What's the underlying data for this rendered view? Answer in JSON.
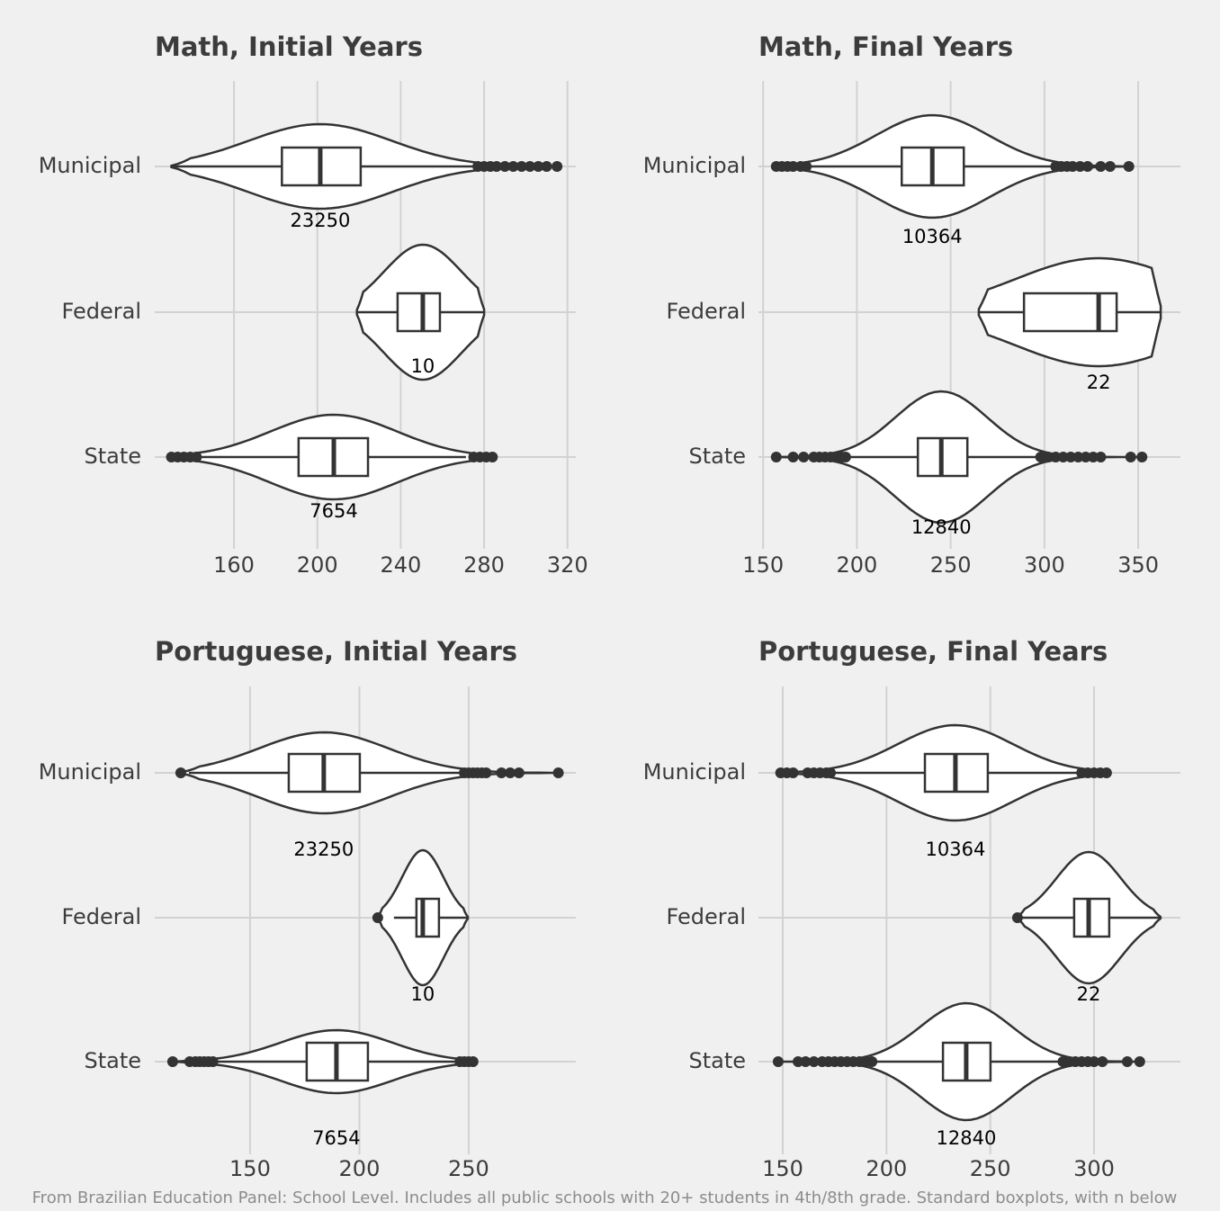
{
  "caption": "From Brazilian Education Panel: School Level. Includes all public schools with 20+ students in 4th/8th grade. Standard boxplots, with n below",
  "chart_data": [
    {
      "type": "boxplot",
      "title": "Math, Initial Years",
      "categories": [
        "Municipal",
        "Federal",
        "State"
      ],
      "xlim": [
        122,
        324
      ],
      "xticks": [
        160,
        200,
        240,
        280,
        320
      ],
      "grid": true,
      "boxes": [
        {
          "whisker_low": 130,
          "q1": 183,
          "median": 201.4,
          "q3": 220.8,
          "whisker_high": 276.4,
          "outliers": [
            277,
            280,
            283,
            286,
            290,
            294,
            298,
            302,
            306,
            310,
            315
          ],
          "n": 23250
        },
        {
          "whisker_low": 219,
          "q1": 238.5,
          "median": 250.6,
          "q3": 258.8,
          "whisker_high": 280,
          "outliers": [],
          "n": 10
        },
        {
          "whisker_low": 143,
          "q1": 191,
          "median": 207.9,
          "q3": 224.3,
          "whisker_high": 271.3,
          "outliers": [
            130,
            133,
            136,
            139,
            142,
            275,
            278,
            281,
            284
          ],
          "n": 7654
        }
      ]
    },
    {
      "type": "boxplot",
      "title": "Math, Final Years",
      "categories": [
        "Municipal",
        "Federal",
        "State"
      ],
      "xlim": [
        147.5,
        372.5
      ],
      "xticks": [
        150,
        200,
        250,
        300,
        350
      ],
      "grid": true,
      "boxes": [
        {
          "whisker_low": 175,
          "q1": 223.9,
          "median": 240.2,
          "q3": 257,
          "whisker_high": 304.4,
          "outliers": [
            157,
            160,
            163,
            166,
            170,
            173,
            306,
            309,
            312,
            315,
            319,
            323,
            330,
            335,
            345
          ],
          "n": 10364
        },
        {
          "whisker_low": 265,
          "q1": 289.1,
          "median": 328.9,
          "q3": 338.5,
          "whisker_high": 362,
          "outliers": [],
          "n": 22
        },
        {
          "whisker_low": 196,
          "q1": 232.5,
          "median": 245,
          "q3": 258.9,
          "whisker_high": 295.8,
          "outliers": [
            157,
            166,
            171.6,
            177,
            180,
            183,
            186,
            189,
            192,
            194,
            298,
            302,
            306,
            310,
            314,
            318,
            322,
            326,
            330,
            346,
            352
          ],
          "n": 12840
        }
      ]
    },
    {
      "type": "boxplot",
      "title": "Portuguese, Initial Years",
      "categories": [
        "Municipal",
        "Federal",
        "State"
      ],
      "xlim": [
        106.4,
        299
      ],
      "xticks": [
        150,
        200,
        250
      ],
      "grid": true,
      "boxes": [
        {
          "whisker_low": 122,
          "q1": 167.7,
          "median": 183.7,
          "q3": 200.2,
          "whisker_high": 246.3,
          "outliers": [
            118.3,
            248,
            250,
            252,
            254,
            256,
            258,
            265,
            269,
            273,
            291
          ],
          "n": 23250
        },
        {
          "whisker_low": 215.8,
          "q1": 226.1,
          "median": 229,
          "q3": 236.4,
          "whisker_high": 249.6,
          "outliers": [
            208.4
          ],
          "n": 10
        },
        {
          "whisker_low": 134.4,
          "q1": 175.9,
          "median": 189.5,
          "q3": 203.9,
          "whisker_high": 244.7,
          "outliers": [
            114.6,
            122.4,
            125,
            127,
            129,
            131,
            133,
            246,
            248,
            250,
            252
          ],
          "n": 7654
        }
      ]
    },
    {
      "type": "boxplot",
      "title": "Portuguese, Final Years",
      "categories": [
        "Municipal",
        "Federal",
        "State"
      ],
      "xlim": [
        138.3,
        341.6
      ],
      "xticks": [
        150,
        200,
        250,
        300
      ],
      "grid": true,
      "boxes": [
        {
          "whisker_low": 174,
          "q1": 218.5,
          "median": 233.2,
          "q3": 248.8,
          "whisker_high": 292.2,
          "outliers": [
            149,
            152,
            155,
            162,
            165,
            168,
            171,
            173,
            294,
            297,
            300,
            303,
            306
          ],
          "n": 10364
        },
        {
          "whisker_low": 265,
          "q1": 290.4,
          "median": 297.4,
          "q3": 307.3,
          "whisker_high": 332,
          "outliers": [
            263.1
          ],
          "n": 22
        },
        {
          "whisker_low": 194,
          "q1": 227.2,
          "median": 238.4,
          "q3": 250.1,
          "whisker_high": 283,
          "outliers": [
            147.8,
            157.4,
            161,
            165,
            169,
            172,
            175,
            178,
            181,
            184,
            187,
            190,
            193,
            285,
            288,
            291,
            294,
            297,
            300,
            304,
            316,
            322
          ],
          "n": 12840
        }
      ]
    }
  ]
}
